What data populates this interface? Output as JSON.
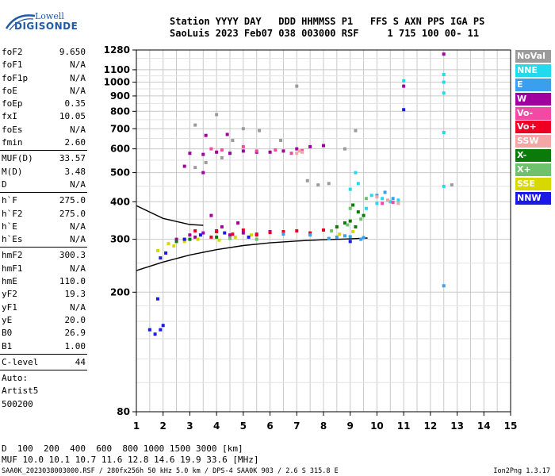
{
  "logo": {
    "line1": "Lowell",
    "line2": "DIGISONDE"
  },
  "header": {
    "line1": "Station YYYY DAY   DDD HHMMSS P1   FFS S AXN PPS IGA PS",
    "line2": "SaoLuis 2023 Feb07 038 003000 RSF     1 715 100 00- 11"
  },
  "params": {
    "group1": [
      {
        "key": "foF2",
        "value": "9.650"
      },
      {
        "key": "foF1",
        "value": "N/A"
      },
      {
        "key": "foF1p",
        "value": "N/A"
      },
      {
        "key": "foE",
        "value": "N/A"
      },
      {
        "key": "foEp",
        "value": "0.35"
      },
      {
        "key": "fxI",
        "value": "10.05"
      },
      {
        "key": "foEs",
        "value": "N/A"
      },
      {
        "key": "fmin",
        "value": "2.60"
      }
    ],
    "group2": [
      {
        "key": "MUF(D)",
        "value": "33.57"
      },
      {
        "key": "M(D)",
        "value": "3.48"
      },
      {
        "key": "D",
        "value": "N/A"
      }
    ],
    "group3": [
      {
        "key": "h`F",
        "value": "275.0"
      },
      {
        "key": "h`F2",
        "value": "275.0"
      },
      {
        "key": "h`E",
        "value": "N/A"
      },
      {
        "key": "h`Es",
        "value": "N/A"
      }
    ],
    "group4": [
      {
        "key": "hmF2",
        "value": "300.3"
      },
      {
        "key": "hmF1",
        "value": "N/A"
      },
      {
        "key": "hmE",
        "value": "110.0"
      },
      {
        "key": "yF2",
        "value": "19.3"
      },
      {
        "key": "yF1",
        "value": "N/A"
      },
      {
        "key": "yE",
        "value": "20.0"
      },
      {
        "key": "B0",
        "value": "26.9"
      },
      {
        "key": "B1",
        "value": "1.00"
      }
    ],
    "group5": [
      {
        "key": "C-level",
        "value": "44"
      }
    ],
    "extra": [
      "Auto:",
      "Artist5",
      "500200"
    ]
  },
  "legend": [
    {
      "label": "NoVal",
      "color": "#9b9b9b"
    },
    {
      "label": "NNE",
      "color": "#22d9ee"
    },
    {
      "label": "E",
      "color": "#3aa0ee"
    },
    {
      "label": "W",
      "color": "#a000a0"
    },
    {
      "label": "Vo-",
      "color": "#f04aa6"
    },
    {
      "label": "Vo+",
      "color": "#ee0022"
    },
    {
      "label": "SSW",
      "color": "#f4a6a6"
    },
    {
      "label": "X-",
      "color": "#0a7a0a"
    },
    {
      "label": "X+",
      "color": "#6ec26e"
    },
    {
      "label": "SSE",
      "color": "#d8d800"
    },
    {
      "label": "NNW",
      "color": "#1a1ae6"
    }
  ],
  "chart_data": {
    "type": "scatter",
    "title": "",
    "xlabel": "",
    "ylabel": "",
    "xlim": [
      1,
      15
    ],
    "ylim": [
      80,
      1280
    ],
    "y_scale": "log",
    "grid": true,
    "xticks": [
      1,
      2,
      3,
      4,
      5,
      6,
      7,
      8,
      9,
      10,
      11,
      12,
      13,
      14,
      15
    ],
    "yticks": [
      80,
      200,
      300,
      400,
      500,
      600,
      700,
      800,
      900,
      1000,
      1100,
      1280
    ],
    "series": [
      {
        "color": "#a000a0",
        "points": [
          [
            3.0,
            580
          ],
          [
            3.5,
            575
          ],
          [
            4.0,
            585
          ],
          [
            4.5,
            580
          ],
          [
            5.0,
            590
          ],
          [
            5.5,
            585
          ],
          [
            6.0,
            585
          ],
          [
            6.5,
            590
          ],
          [
            7.0,
            600
          ],
          [
            7.5,
            610
          ],
          [
            8.0,
            615
          ],
          [
            3.0,
            310
          ],
          [
            3.5,
            315
          ],
          [
            4.0,
            320
          ],
          [
            4.5,
            310
          ],
          [
            5.0,
            315
          ],
          [
            5.5,
            312
          ],
          [
            6.0,
            318
          ],
          [
            2.5,
            300
          ],
          [
            3.2,
            305
          ],
          [
            4.2,
            330
          ],
          [
            4.8,
            340
          ],
          [
            3.8,
            360
          ],
          [
            12.5,
            1240
          ],
          [
            11.0,
            970
          ],
          [
            3.6,
            665
          ],
          [
            4.4,
            670
          ],
          [
            3.5,
            500
          ],
          [
            2.8,
            525
          ]
        ]
      },
      {
        "color": "#ee0022",
        "points": [
          [
            3.2,
            320
          ],
          [
            4.0,
            318
          ],
          [
            5.0,
            322
          ],
          [
            6.0,
            316
          ],
          [
            6.5,
            318
          ],
          [
            7.0,
            320
          ],
          [
            7.5,
            315
          ],
          [
            8.0,
            322
          ],
          [
            3.8,
            305
          ],
          [
            5.5,
            310
          ],
          [
            2.8,
            300
          ],
          [
            4.6,
            312
          ]
        ]
      },
      {
        "color": "#22d9ee",
        "points": [
          [
            9.0,
            440
          ],
          [
            9.3,
            460
          ],
          [
            9.8,
            420
          ],
          [
            10.2,
            410
          ],
          [
            10.5,
            400
          ],
          [
            10.8,
            405
          ],
          [
            11.0,
            1010
          ],
          [
            12.5,
            1060
          ],
          [
            12.5,
            1000
          ],
          [
            12.5,
            920
          ],
          [
            12.5,
            680
          ],
          [
            12.5,
            450
          ],
          [
            9.2,
            500
          ],
          [
            9.6,
            380
          ],
          [
            10.0,
            395
          ]
        ]
      },
      {
        "color": "#3aa0ee",
        "points": [
          [
            8.5,
            305
          ],
          [
            8.8,
            308
          ],
          [
            9.0,
            306
          ],
          [
            9.5,
            304
          ],
          [
            7.5,
            310
          ],
          [
            6.5,
            312
          ],
          [
            10.0,
            420
          ],
          [
            10.3,
            430
          ],
          [
            10.6,
            410
          ],
          [
            12.5,
            210
          ],
          [
            9.4,
            300
          ],
          [
            8.2,
            302
          ]
        ]
      },
      {
        "color": "#f04aa6",
        "points": [
          [
            5.5,
            590
          ],
          [
            6.2,
            595
          ],
          [
            6.8,
            580
          ],
          [
            7.2,
            592
          ],
          [
            4.2,
            595
          ],
          [
            3.8,
            600
          ],
          [
            5.0,
            610
          ],
          [
            10.2,
            395
          ],
          [
            10.6,
            398
          ]
        ]
      },
      {
        "color": "#f4a6a6",
        "points": [
          [
            7.0,
            580
          ],
          [
            7.1,
            590
          ],
          [
            7.2,
            585
          ],
          [
            10.0,
            415
          ],
          [
            10.4,
            405
          ],
          [
            10.8,
            395
          ]
        ]
      },
      {
        "color": "#0a7a0a",
        "points": [
          [
            8.5,
            330
          ],
          [
            8.8,
            340
          ],
          [
            9.0,
            345
          ],
          [
            9.2,
            330
          ],
          [
            9.5,
            360
          ],
          [
            2.5,
            295
          ],
          [
            3.0,
            300
          ],
          [
            4.0,
            305
          ],
          [
            9.3,
            370
          ],
          [
            9.1,
            390
          ]
        ]
      },
      {
        "color": "#6ec26e",
        "points": [
          [
            8.3,
            320
          ],
          [
            8.9,
            335
          ],
          [
            9.4,
            350
          ],
          [
            9.0,
            380
          ],
          [
            9.6,
            410
          ],
          [
            4.5,
            302
          ],
          [
            5.5,
            300
          ]
        ]
      },
      {
        "color": "#d8d800",
        "points": [
          [
            2.2,
            290
          ],
          [
            2.8,
            295
          ],
          [
            3.3,
            300
          ],
          [
            4.1,
            298
          ],
          [
            4.7,
            305
          ],
          [
            5.3,
            310
          ],
          [
            8.6,
            312
          ],
          [
            9.1,
            318
          ],
          [
            1.8,
            275
          ],
          [
            2.4,
            285
          ]
        ]
      },
      {
        "color": "#1a1ae6",
        "points": [
          [
            1.5,
            150
          ],
          [
            1.7,
            145
          ],
          [
            1.9,
            150
          ],
          [
            2.0,
            155
          ],
          [
            1.8,
            190
          ],
          [
            2.8,
            300
          ],
          [
            3.4,
            310
          ],
          [
            4.3,
            315
          ],
          [
            5.2,
            305
          ],
          [
            11.0,
            810
          ],
          [
            1.9,
            260
          ],
          [
            2.1,
            270
          ],
          [
            9.0,
            295
          ]
        ]
      },
      {
        "color": "#9b9b9b",
        "points": [
          [
            3.2,
            520
          ],
          [
            3.6,
            540
          ],
          [
            4.2,
            560
          ],
          [
            4.6,
            640
          ],
          [
            5.0,
            700
          ],
          [
            5.6,
            690
          ],
          [
            6.4,
            640
          ],
          [
            7.0,
            970
          ],
          [
            8.8,
            600
          ],
          [
            9.2,
            690
          ],
          [
            7.4,
            470
          ],
          [
            7.8,
            455
          ],
          [
            8.2,
            460
          ],
          [
            4.0,
            780
          ],
          [
            3.2,
            720
          ],
          [
            12.8,
            455
          ]
        ]
      }
    ],
    "curves": [
      {
        "name": "",
        "color": "#000000",
        "points": [
          [
            1.0,
            236
          ],
          [
            2.0,
            252
          ],
          [
            3.0,
            266
          ],
          [
            4.0,
            277
          ],
          [
            5.0,
            286
          ],
          [
            6.0,
            292
          ],
          [
            7.0,
            296
          ],
          [
            8.0,
            299
          ],
          [
            9.0,
            301
          ],
          [
            9.65,
            303
          ]
        ]
      },
      {
        "name": "",
        "color": "#000000",
        "points": [
          [
            1.0,
            388
          ],
          [
            2.0,
            352
          ],
          [
            3.0,
            336
          ],
          [
            3.5,
            334
          ]
        ]
      }
    ]
  },
  "footer": {
    "dist_label": "D",
    "dist_values": "  100  200  400  600  800 1000 1500 3000 [km]",
    "muf_label": "MUF",
    "muf_values": " 10.0 10.1 10.7 11.6 12.8 14.6 19.9 33.6 [MHz]",
    "info": "SAA0K_2023038003000.RSF / 280fx256h 50 kHz 5.0 km / DPS-4 SAA0K 903 / 2.6 S 315.8 E",
    "version": "Ion2Png 1.3.17"
  }
}
